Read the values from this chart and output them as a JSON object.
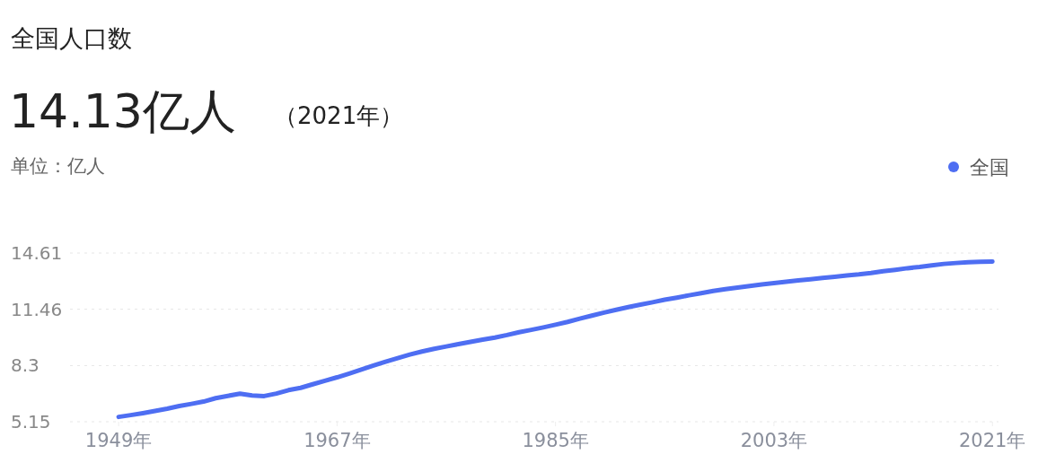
{
  "chart_data": {
    "type": "line",
    "title": "全国人口数",
    "subtitle": "14.13亿人",
    "annotations": [
      "（2021年）"
    ],
    "ylabel": "单位：亿人",
    "x": [
      1949,
      1950,
      1951,
      1952,
      1953,
      1954,
      1955,
      1956,
      1957,
      1958,
      1959,
      1960,
      1961,
      1962,
      1963,
      1964,
      1965,
      1966,
      1967,
      1968,
      1969,
      1970,
      1971,
      1972,
      1973,
      1974,
      1975,
      1976,
      1977,
      1978,
      1979,
      1980,
      1981,
      1982,
      1983,
      1984,
      1985,
      1986,
      1987,
      1988,
      1989,
      1990,
      1991,
      1992,
      1993,
      1994,
      1995,
      1996,
      1997,
      1998,
      1999,
      2000,
      2001,
      2002,
      2003,
      2004,
      2005,
      2006,
      2007,
      2008,
      2009,
      2010,
      2011,
      2012,
      2013,
      2014,
      2015,
      2016,
      2017,
      2018,
      2019,
      2020,
      2021
    ],
    "xlim": [
      1945,
      2021.5
    ],
    "xticks": [
      {
        "value": 1949,
        "label": "1949年"
      },
      {
        "value": 1967,
        "label": "1967年"
      },
      {
        "value": 1985,
        "label": "1985年"
      },
      {
        "value": 2003,
        "label": "2003年"
      },
      {
        "value": 2021,
        "label": "2021年"
      }
    ],
    "ylim": [
      5.15,
      14.61
    ],
    "yticks": [
      5.15,
      8.3,
      11.46,
      14.61
    ],
    "grid": "y",
    "legend": "top right",
    "series": [
      {
        "name": "全国",
        "color": "#4e6ef2",
        "values": [
          5.42,
          5.52,
          5.63,
          5.75,
          5.88,
          6.03,
          6.15,
          6.28,
          6.47,
          6.6,
          6.72,
          6.62,
          6.59,
          6.73,
          6.92,
          7.05,
          7.25,
          7.45,
          7.64,
          7.85,
          8.07,
          8.3,
          8.52,
          8.72,
          8.92,
          9.09,
          9.24,
          9.37,
          9.5,
          9.63,
          9.75,
          9.87,
          10.01,
          10.17,
          10.3,
          10.44,
          10.59,
          10.75,
          10.93,
          11.1,
          11.27,
          11.43,
          11.58,
          11.72,
          11.85,
          11.99,
          12.11,
          12.24,
          12.36,
          12.48,
          12.58,
          12.67,
          12.76,
          12.85,
          12.92,
          13.0,
          13.08,
          13.14,
          13.21,
          13.28,
          13.35,
          13.41,
          13.49,
          13.59,
          13.67,
          13.76,
          13.83,
          13.92,
          14.0,
          14.05,
          14.1,
          14.12,
          14.13
        ]
      }
    ]
  }
}
